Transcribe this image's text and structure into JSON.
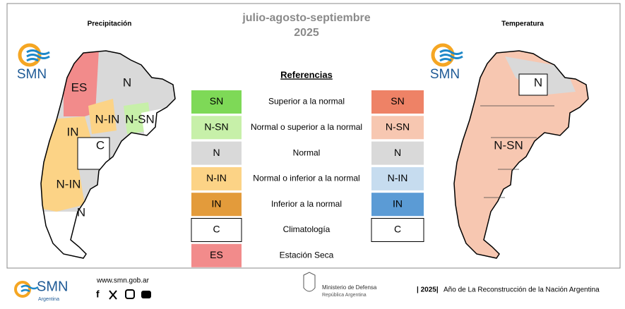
{
  "header": {
    "title": "julio-agosto-septiembre",
    "year": "2025"
  },
  "maps": [
    {
      "title": "Precipitación",
      "logo": "SMN",
      "labels": [
        "ES",
        "N",
        "N-IN",
        "N-SN",
        "IN",
        "C",
        "N-IN",
        "N"
      ]
    },
    {
      "title": "Temperatura",
      "logo": "SMN",
      "labels": [
        "N",
        "N-SN"
      ]
    }
  ],
  "legend": {
    "title": "Referencias",
    "rows": [
      {
        "code": "SN",
        "label": "Superior a la normal",
        "color": "#7ed957"
      },
      {
        "code": "N-SN",
        "label": "Normal o superior a la normal",
        "color": "#c7f0a9"
      },
      {
        "code": "N",
        "label": "Normal",
        "color": "#d9d9d9"
      },
      {
        "code": "N-IN",
        "label": "Normal o inferior a la normal",
        "color": "#fcd386"
      },
      {
        "code": "IN",
        "label": "Inferior a la normal",
        "color": "#e39b3b"
      },
      {
        "code": "C",
        "label": "Climatología",
        "color": "#ffffff"
      },
      {
        "code": "ES",
        "label": "Estación Seca",
        "color": "#f28b8b"
      }
    ],
    "temperature_rows": [
      {
        "code": "SN",
        "color": "#ee8266"
      },
      {
        "code": "N-SN",
        "color": "#f7c7b1"
      },
      {
        "code": "N",
        "color": "#d9d9d9"
      },
      {
        "code": "N-IN",
        "color": "#c6dcef"
      },
      {
        "code": "IN",
        "color": "#5b9bd5"
      },
      {
        "code": "C",
        "color": "#ffffff"
      }
    ]
  },
  "footer": {
    "logo": "SMN",
    "logo_sub": "Argentina",
    "url": "www.smn.gob.ar",
    "ministry": "Ministerio de Defensa",
    "ministry_sub": "República Argentina",
    "year": "| 2025|",
    "slogan": "Año de La Reconstrucción de la Nación Argentina"
  }
}
